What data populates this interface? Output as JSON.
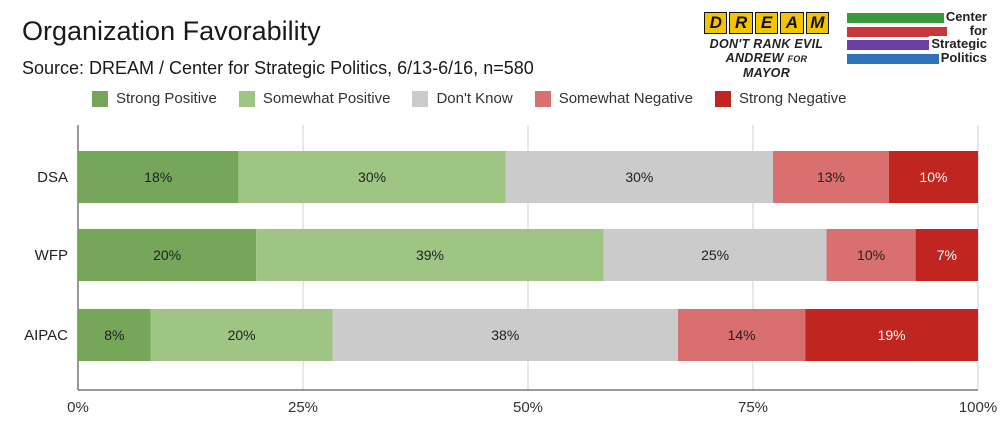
{
  "header": {
    "title": "Organization Favorability",
    "subtitle": "Source:  DREAM / Center for Strategic Politics, 6/13-6/16, n=580"
  },
  "logos": {
    "dream": {
      "letters": [
        "D",
        "R",
        "E",
        "A",
        "M"
      ],
      "line1": "DON'T RANK EVIL",
      "line2_a": "ANDREW",
      "line2_b": "FOR",
      "line2_c": "MAYOR"
    },
    "csp": {
      "lines": [
        "Center",
        "for",
        "Strategic",
        "Politics"
      ],
      "bar_colors": [
        "#3a9a3a",
        "#c8373c",
        "#6a3fa0",
        "#2f72b8"
      ]
    }
  },
  "chart_data": {
    "type": "bar",
    "orientation": "horizontal",
    "stacked": true,
    "normalized": true,
    "categories": [
      "DSA",
      "WFP",
      "AIPAC"
    ],
    "series": [
      {
        "name": "Strong Positive",
        "color": "#76a659",
        "values": [
          18,
          20,
          8
        ]
      },
      {
        "name": "Somewhat Positive",
        "color": "#9fc585",
        "values": [
          30,
          39,
          20
        ]
      },
      {
        "name": "Don't Know",
        "color": "#cbcbcb",
        "values": [
          30,
          25,
          38
        ]
      },
      {
        "name": "Somewhat Negative",
        "color": "#d9706f",
        "values": [
          13,
          10,
          14
        ]
      },
      {
        "name": "Strong Negative",
        "color": "#c0261f",
        "values": [
          10,
          7,
          19
        ]
      }
    ],
    "x_ticks": [
      "0%",
      "25%",
      "50%",
      "75%",
      "100%"
    ],
    "xlim": [
      0,
      100
    ],
    "legend_position": "top"
  }
}
